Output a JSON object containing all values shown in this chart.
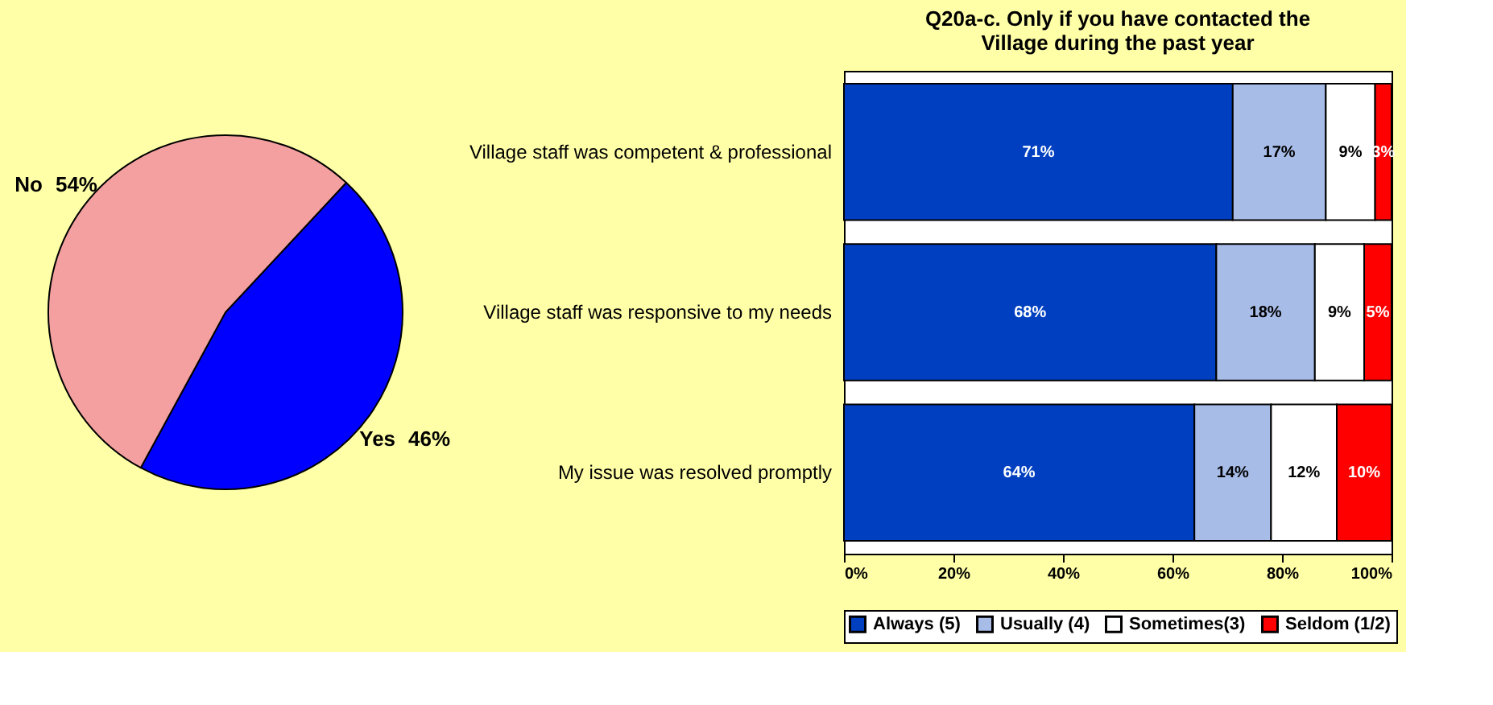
{
  "chart_data": [
    {
      "type": "pie",
      "categories": [
        "Yes",
        "No"
      ],
      "values": [
        46,
        54
      ],
      "colors": [
        "#0000ff",
        "#f4a0a0"
      ],
      "value_labels": [
        "46%",
        "54%"
      ],
      "legend": false
    },
    {
      "type": "bar",
      "orientation": "horizontal",
      "stacked": true,
      "title": "Q20a-c. Only if you have contacted the Village during the past year",
      "categories": [
        "Village staff was competent & professional",
        "Village staff was responsive to my needs",
        "My issue was resolved promptly"
      ],
      "series": [
        {
          "name": "Always (5)",
          "color": "#0040c0",
          "values": [
            71,
            68,
            64
          ],
          "value_labels": [
            "71%",
            "68%",
            "64%"
          ]
        },
        {
          "name": "Usually (4)",
          "color": "#a8bce8",
          "values": [
            17,
            18,
            14
          ],
          "value_labels": [
            "17%",
            "18%",
            "14%"
          ]
        },
        {
          "name": "Sometimes(3)",
          "color": "#ffffff",
          "values": [
            9,
            9,
            12
          ],
          "value_labels": [
            "9%",
            "9%",
            "12%"
          ]
        },
        {
          "name": "Seldom (1/2)",
          "color": "#ff0000",
          "values": [
            3,
            5,
            10
          ],
          "value_labels": [
            "3%",
            "5%",
            "10%"
          ]
        }
      ],
      "xlim": [
        0,
        100
      ],
      "xticks": [
        {
          "value": 0,
          "label": "0%"
        },
        {
          "value": 20,
          "label": "20%"
        },
        {
          "value": 40,
          "label": "40%"
        },
        {
          "value": 60,
          "label": "60%"
        },
        {
          "value": 80,
          "label": "80%"
        },
        {
          "value": 100,
          "label": "100%"
        }
      ],
      "grid": false,
      "legend": "bottom"
    }
  ]
}
